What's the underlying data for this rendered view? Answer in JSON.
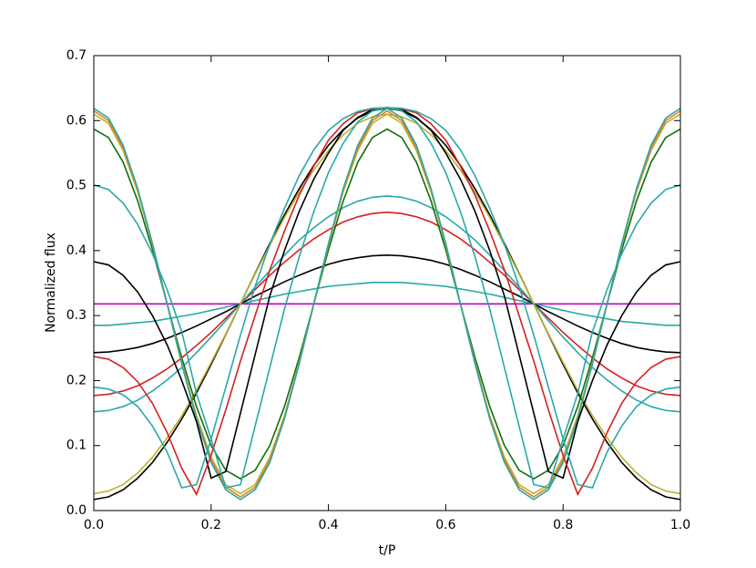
{
  "chart_data": {
    "type": "line",
    "x_label": "t/P",
    "y_label": "Normalized flux",
    "x": [
      0,
      0.025,
      0.05,
      0.075,
      0.1,
      0.125,
      0.15,
      0.175,
      0.2,
      0.225,
      0.25,
      0.275,
      0.3,
      0.325,
      0.35,
      0.375,
      0.4,
      0.425,
      0.45,
      0.475,
      0.5,
      0.525,
      0.55,
      0.575,
      0.6,
      0.625,
      0.65,
      0.675,
      0.7,
      0.725,
      0.75,
      0.775,
      0.8,
      0.825,
      0.85,
      0.875,
      0.9,
      0.925,
      0.95,
      0.975,
      1
    ],
    "xlim": [
      0,
      1
    ],
    "ylim": [
      0,
      0.7
    ],
    "xticks": [
      {
        "value": 0,
        "label": "0.0"
      },
      0.2,
      0.4,
      0.6,
      0.8,
      {
        "value": 1,
        "label": "1.0"
      }
    ],
    "yticks": [
      {
        "value": 0,
        "label": "0.0"
      },
      0.1,
      0.2,
      0.3,
      0.4,
      0.5,
      0.6,
      0.7
    ],
    "series": [
      {
        "color": "#c000c0",
        "values": [
          0.318,
          0.318,
          0.318,
          0.318,
          0.318,
          0.318,
          0.318,
          0.318,
          0.318,
          0.318,
          0.318,
          0.318,
          0.318,
          0.318,
          0.318,
          0.318,
          0.318,
          0.318,
          0.318,
          0.318,
          0.318,
          0.318,
          0.318,
          0.318,
          0.318,
          0.318,
          0.318,
          0.318,
          0.318,
          0.318,
          0.318,
          0.318,
          0.318,
          0.318,
          0.318,
          0.318,
          0.318,
          0.318,
          0.318,
          0.318,
          0.318
        ]
      },
      {
        "color": "#2aa8a8",
        "values": [
          0.285,
          0.285,
          0.287,
          0.289,
          0.291,
          0.295,
          0.299,
          0.303,
          0.308,
          0.313,
          0.318,
          0.323,
          0.328,
          0.333,
          0.337,
          0.341,
          0.345,
          0.347,
          0.349,
          0.351,
          0.351,
          0.351,
          0.349,
          0.347,
          0.345,
          0.341,
          0.337,
          0.333,
          0.328,
          0.323,
          0.318,
          0.313,
          0.308,
          0.303,
          0.299,
          0.295,
          0.291,
          0.289,
          0.287,
          0.285,
          0.285
        ]
      },
      {
        "color": "#000000",
        "values": [
          0.243,
          0.244,
          0.247,
          0.251,
          0.257,
          0.265,
          0.274,
          0.284,
          0.295,
          0.306,
          0.318,
          0.33,
          0.341,
          0.352,
          0.362,
          0.371,
          0.379,
          0.385,
          0.389,
          0.392,
          0.393,
          0.392,
          0.389,
          0.385,
          0.379,
          0.371,
          0.362,
          0.352,
          0.341,
          0.33,
          0.318,
          0.306,
          0.295,
          0.284,
          0.274,
          0.265,
          0.257,
          0.251,
          0.247,
          0.244,
          0.243
        ]
      },
      {
        "color": "#d62020",
        "values": [
          0.177,
          0.179,
          0.184,
          0.192,
          0.204,
          0.218,
          0.235,
          0.254,
          0.274,
          0.296,
          0.318,
          0.34,
          0.362,
          0.382,
          0.401,
          0.418,
          0.432,
          0.444,
          0.452,
          0.457,
          0.459,
          0.457,
          0.452,
          0.444,
          0.432,
          0.418,
          0.401,
          0.382,
          0.362,
          0.34,
          0.318,
          0.296,
          0.274,
          0.254,
          0.235,
          0.218,
          0.204,
          0.192,
          0.184,
          0.179,
          0.177
        ]
      },
      {
        "color": "#2aa8a8",
        "values": [
          0.152,
          0.154,
          0.16,
          0.17,
          0.184,
          0.201,
          0.22,
          0.243,
          0.267,
          0.292,
          0.318,
          0.344,
          0.369,
          0.393,
          0.416,
          0.435,
          0.452,
          0.466,
          0.476,
          0.482,
          0.484,
          0.482,
          0.476,
          0.466,
          0.452,
          0.435,
          0.416,
          0.393,
          0.369,
          0.344,
          0.318,
          0.292,
          0.267,
          0.243,
          0.22,
          0.201,
          0.184,
          0.17,
          0.16,
          0.154,
          0.152
        ]
      },
      {
        "color": "#000000",
        "values": [
          0.017,
          0.021,
          0.032,
          0.05,
          0.074,
          0.105,
          0.141,
          0.181,
          0.225,
          0.271,
          0.318,
          0.365,
          0.411,
          0.455,
          0.495,
          0.531,
          0.562,
          0.586,
          0.604,
          0.615,
          0.619,
          0.615,
          0.604,
          0.586,
          0.562,
          0.531,
          0.495,
          0.455,
          0.411,
          0.365,
          0.318,
          0.271,
          0.225,
          0.181,
          0.141,
          0.105,
          0.074,
          0.05,
          0.032,
          0.021,
          0.017
        ]
      },
      {
        "color": "#c0b030",
        "values": [
          0.026,
          0.03,
          0.04,
          0.058,
          0.082,
          0.112,
          0.146,
          0.185,
          0.228,
          0.272,
          0.318,
          0.364,
          0.408,
          0.451,
          0.49,
          0.524,
          0.554,
          0.578,
          0.596,
          0.606,
          0.61,
          0.606,
          0.596,
          0.578,
          0.554,
          0.524,
          0.49,
          0.451,
          0.408,
          0.364,
          0.318,
          0.272,
          0.228,
          0.185,
          0.146,
          0.112,
          0.082,
          0.058,
          0.04,
          0.03,
          0.026
        ]
      },
      {
        "color": "#107010",
        "values": [
          0.587,
          0.574,
          0.536,
          0.476,
          0.401,
          0.318,
          0.235,
          0.16,
          0.1,
          0.062,
          0.049,
          0.062,
          0.1,
          0.16,
          0.235,
          0.318,
          0.401,
          0.476,
          0.536,
          0.574,
          0.587,
          0.574,
          0.536,
          0.476,
          0.401,
          0.318,
          0.235,
          0.16,
          0.1,
          0.062,
          0.049,
          0.062,
          0.1,
          0.16,
          0.235,
          0.318,
          0.401,
          0.476,
          0.536,
          0.574,
          0.587
        ]
      },
      {
        "color": "#c0b030",
        "values": [
          0.61,
          0.596,
          0.554,
          0.49,
          0.408,
          0.318,
          0.228,
          0.146,
          0.082,
          0.04,
          0.026,
          0.04,
          0.082,
          0.146,
          0.228,
          0.318,
          0.408,
          0.49,
          0.554,
          0.596,
          0.61,
          0.596,
          0.554,
          0.49,
          0.408,
          0.318,
          0.228,
          0.146,
          0.082,
          0.04,
          0.026,
          0.04,
          0.082,
          0.146,
          0.228,
          0.318,
          0.408,
          0.49,
          0.554,
          0.596,
          0.61
        ]
      },
      {
        "color": "#e08020",
        "values": [
          0.615,
          0.6,
          0.558,
          0.493,
          0.41,
          0.318,
          0.226,
          0.143,
          0.078,
          0.036,
          0.021,
          0.036,
          0.078,
          0.143,
          0.226,
          0.318,
          0.41,
          0.493,
          0.558,
          0.6,
          0.615,
          0.6,
          0.558,
          0.493,
          0.41,
          0.318,
          0.226,
          0.143,
          0.078,
          0.036,
          0.021,
          0.036,
          0.078,
          0.143,
          0.226,
          0.318,
          0.41,
          0.493,
          0.558,
          0.6,
          0.615
        ]
      },
      {
        "color": "#2aa8a8",
        "values": [
          0.619,
          0.604,
          0.562,
          0.495,
          0.411,
          0.318,
          0.225,
          0.141,
          0.074,
          0.032,
          0.017,
          0.032,
          0.074,
          0.141,
          0.225,
          0.318,
          0.411,
          0.495,
          0.562,
          0.604,
          0.619,
          0.604,
          0.562,
          0.495,
          0.411,
          0.318,
          0.225,
          0.141,
          0.074,
          0.032,
          0.017,
          0.032,
          0.074,
          0.141,
          0.225,
          0.318,
          0.411,
          0.495,
          0.562,
          0.604,
          0.619
        ]
      },
      {
        "color": "#000000",
        "values": [
          0.383,
          0.378,
          0.362,
          0.336,
          0.3,
          0.255,
          0.2,
          0.137,
          0.05,
          0.06,
          0.15,
          0.24,
          0.33,
          0.4,
          0.46,
          0.51,
          0.55,
          0.585,
          0.605,
          0.617,
          0.62,
          0.617,
          0.605,
          0.585,
          0.55,
          0.51,
          0.46,
          0.4,
          0.33,
          0.24,
          0.15,
          0.06,
          0.05,
          0.137,
          0.2,
          0.255,
          0.3,
          0.336,
          0.362,
          0.378,
          0.383
        ]
      },
      {
        "color": "#d62020",
        "values": [
          0.237,
          0.233,
          0.22,
          0.198,
          0.165,
          0.12,
          0.065,
          0.025,
          0.085,
          0.155,
          0.23,
          0.3,
          0.37,
          0.43,
          0.485,
          0.53,
          0.57,
          0.595,
          0.612,
          0.618,
          0.62,
          0.618,
          0.612,
          0.595,
          0.57,
          0.53,
          0.485,
          0.43,
          0.37,
          0.3,
          0.23,
          0.155,
          0.085,
          0.025,
          0.065,
          0.12,
          0.165,
          0.198,
          0.22,
          0.233,
          0.237
        ]
      },
      {
        "color": "#2aa8a8",
        "values": [
          0.19,
          0.187,
          0.178,
          0.16,
          0.13,
          0.09,
          0.035,
          0.04,
          0.11,
          0.19,
          0.27,
          0.345,
          0.41,
          0.465,
          0.515,
          0.555,
          0.585,
          0.603,
          0.614,
          0.619,
          0.62,
          0.619,
          0.614,
          0.603,
          0.585,
          0.555,
          0.515,
          0.465,
          0.41,
          0.345,
          0.27,
          0.19,
          0.11,
          0.04,
          0.035,
          0.09,
          0.13,
          0.16,
          0.178,
          0.187,
          0.19
        ]
      },
      {
        "color": "#2aa8a8",
        "values": [
          0.501,
          0.494,
          0.473,
          0.44,
          0.395,
          0.34,
          0.275,
          0.18,
          0.11,
          0.035,
          0.04,
          0.13,
          0.22,
          0.31,
          0.39,
          0.46,
          0.52,
          0.565,
          0.598,
          0.615,
          0.62,
          0.615,
          0.598,
          0.565,
          0.52,
          0.46,
          0.39,
          0.31,
          0.22,
          0.13,
          0.04,
          0.035,
          0.11,
          0.18,
          0.275,
          0.34,
          0.395,
          0.44,
          0.473,
          0.494,
          0.501
        ]
      }
    ]
  }
}
